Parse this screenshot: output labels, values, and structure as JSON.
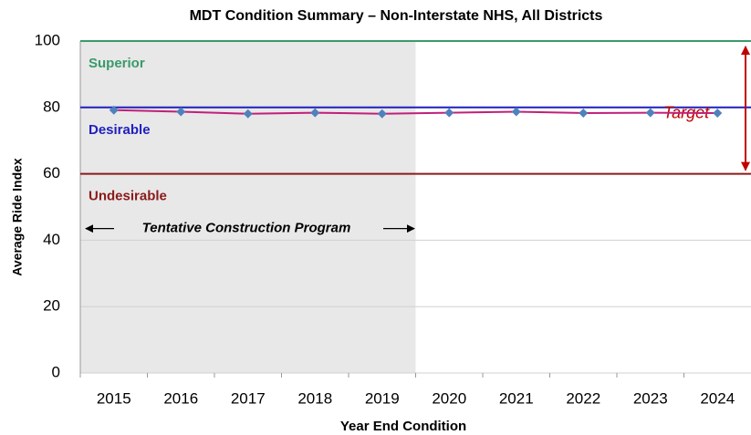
{
  "chart_data": {
    "type": "line",
    "title": "MDT Condition Summary – Non-Interstate NHS, All Districts",
    "x_label": "Year End Condition",
    "y_label": "Average Ride Index",
    "categories": [
      "2015",
      "2016",
      "2017",
      "2018",
      "2019",
      "2020",
      "2021",
      "2022",
      "2023",
      "2024"
    ],
    "values": [
      79.2,
      78.7,
      78.1,
      78.4,
      78.1,
      78.4,
      78.7,
      78.3,
      78.4,
      78.3
    ],
    "color": "#c0207a",
    "marker_color": "#4f81bd",
    "ylim": [
      0,
      100
    ],
    "yticks": [
      0,
      20,
      40,
      60,
      80,
      100
    ],
    "grid": true,
    "thresholds": [
      {
        "label": "Superior",
        "value": 100,
        "color": "#3a9a6a"
      },
      {
        "label": "Desirable",
        "value": 80,
        "color": "#1f1fbf"
      },
      {
        "label": "Undesirable",
        "value": 60,
        "color": "#8b1a1a"
      }
    ],
    "shaded_note": "Tentative Construction Program",
    "target_label": "Target"
  }
}
